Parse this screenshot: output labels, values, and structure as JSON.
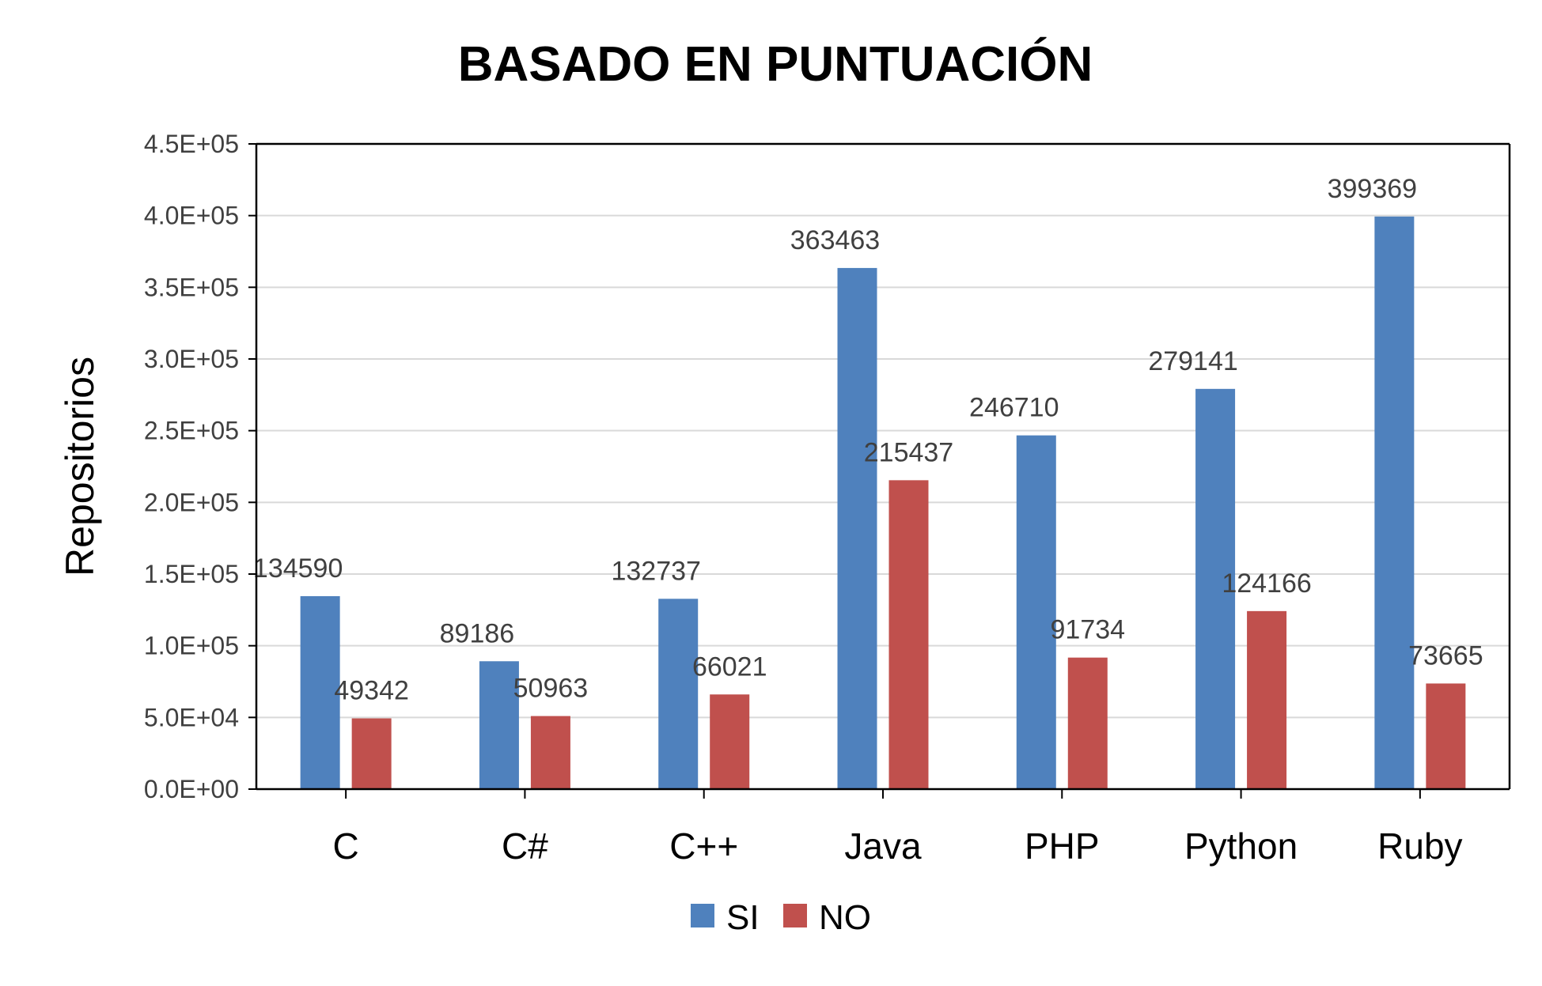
{
  "chart_data": {
    "type": "bar",
    "title": "BASADO EN PUNTUACIÓN",
    "xlabel": "",
    "ylabel": "Repositorios",
    "categories": [
      "C",
      "C#",
      "C++",
      "Java",
      "PHP",
      "Python",
      "Ruby"
    ],
    "series": [
      {
        "name": "SI",
        "color": "#4F81BD",
        "values": [
          134590,
          89186,
          132737,
          363463,
          246710,
          279141,
          399369
        ]
      },
      {
        "name": "NO",
        "color": "#C0504D",
        "values": [
          49342,
          50963,
          66021,
          215437,
          91734,
          124166,
          73665
        ]
      }
    ],
    "ylim": [
      0,
      450000
    ],
    "yticks": [
      0,
      50000,
      100000,
      150000,
      200000,
      250000,
      300000,
      350000,
      400000,
      450000
    ],
    "ytick_labels": [
      "0.0E+00",
      "5.0E+04",
      "1.0E+05",
      "1.5E+05",
      "2.0E+05",
      "2.5E+05",
      "3.0E+05",
      "3.5E+05",
      "4.0E+05",
      "4.5E+05"
    ],
    "grid": true,
    "data_labels": true,
    "legend": "bottom"
  }
}
